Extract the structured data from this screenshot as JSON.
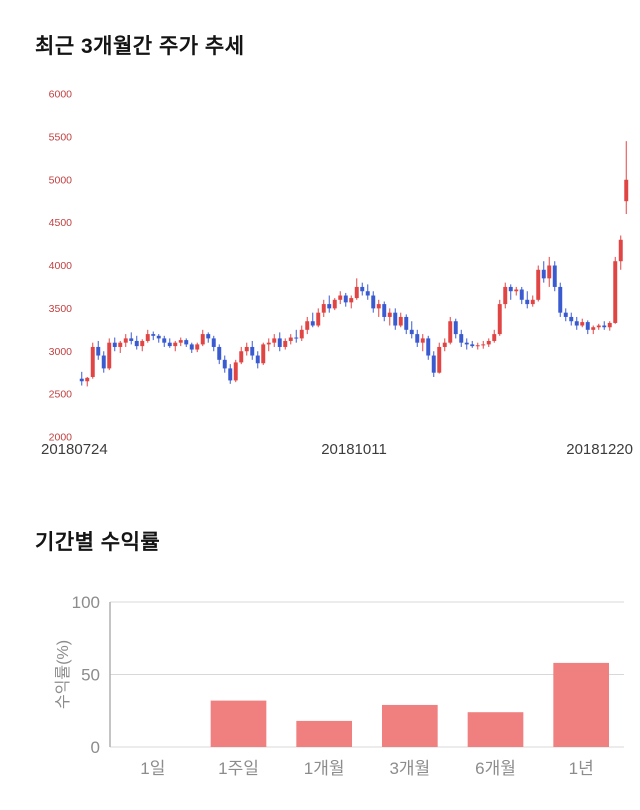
{
  "page": {
    "background": "#ffffff"
  },
  "chart_data": [
    {
      "type": "candlestick",
      "title": "최근 3개월간 주가 추세",
      "ylim": [
        2000,
        6000
      ],
      "y_ticks": [
        2000,
        2500,
        3000,
        3500,
        4000,
        4500,
        5000,
        5500,
        6000
      ],
      "x_labels": [
        "20180724",
        "20181011",
        "20181220"
      ],
      "up_color": "#e04443",
      "down_color": "#3a5bd0",
      "tick_color": "#c04040",
      "xlabel_color": "#3c3c3c",
      "candles": [
        [
          2680,
          2760,
          2600,
          2650
        ],
        [
          2650,
          2700,
          2590,
          2690
        ],
        [
          2700,
          3100,
          2680,
          3050
        ],
        [
          3050,
          3120,
          2900,
          2950
        ],
        [
          2950,
          3000,
          2750,
          2800
        ],
        [
          2800,
          3150,
          2780,
          3100
        ],
        [
          3100,
          3160,
          3000,
          3050
        ],
        [
          3050,
          3120,
          2980,
          3100
        ],
        [
          3100,
          3200,
          3050,
          3150
        ],
        [
          3150,
          3220,
          3080,
          3120
        ],
        [
          3120,
          3180,
          3020,
          3060
        ],
        [
          3060,
          3140,
          3000,
          3120
        ],
        [
          3120,
          3250,
          3100,
          3200
        ],
        [
          3200,
          3230,
          3130,
          3180
        ],
        [
          3180,
          3200,
          3100,
          3150
        ],
        [
          3150,
          3180,
          3050,
          3100
        ],
        [
          3100,
          3150,
          3040,
          3060
        ],
        [
          3060,
          3120,
          3000,
          3100
        ],
        [
          3100,
          3160,
          3060,
          3130
        ],
        [
          3130,
          3150,
          3050,
          3080
        ],
        [
          3080,
          3100,
          2980,
          3020
        ],
        [
          3020,
          3100,
          2990,
          3080
        ],
        [
          3080,
          3250,
          3060,
          3200
        ],
        [
          3200,
          3220,
          3100,
          3150
        ],
        [
          3150,
          3180,
          3000,
          3050
        ],
        [
          3050,
          3080,
          2850,
          2900
        ],
        [
          2900,
          2950,
          2750,
          2800
        ],
        [
          2800,
          2850,
          2620,
          2660
        ],
        [
          2660,
          2900,
          2640,
          2870
        ],
        [
          2870,
          3050,
          2850,
          3000
        ],
        [
          3000,
          3100,
          2950,
          3050
        ],
        [
          3050,
          3120,
          2900,
          2950
        ],
        [
          2950,
          3000,
          2800,
          2860
        ],
        [
          2860,
          3100,
          2840,
          3080
        ],
        [
          3080,
          3150,
          3000,
          3100
        ],
        [
          3100,
          3200,
          3050,
          3150
        ],
        [
          3150,
          3220,
          3000,
          3050
        ],
        [
          3050,
          3150,
          3020,
          3120
        ],
        [
          3120,
          3200,
          3080,
          3160
        ],
        [
          3160,
          3250,
          3100,
          3150
        ],
        [
          3150,
          3300,
          3120,
          3250
        ],
        [
          3250,
          3400,
          3200,
          3350
        ],
        [
          3350,
          3450,
          3280,
          3300
        ],
        [
          3300,
          3500,
          3280,
          3450
        ],
        [
          3450,
          3600,
          3400,
          3550
        ],
        [
          3550,
          3650,
          3450,
          3500
        ],
        [
          3500,
          3620,
          3480,
          3600
        ],
        [
          3600,
          3700,
          3550,
          3650
        ],
        [
          3650,
          3680,
          3520,
          3570
        ],
        [
          3570,
          3650,
          3500,
          3620
        ],
        [
          3620,
          3850,
          3600,
          3750
        ],
        [
          3750,
          3800,
          3650,
          3700
        ],
        [
          3700,
          3780,
          3600,
          3650
        ],
        [
          3650,
          3700,
          3450,
          3500
        ],
        [
          3500,
          3600,
          3400,
          3550
        ],
        [
          3550,
          3580,
          3350,
          3400
        ],
        [
          3400,
          3500,
          3300,
          3450
        ],
        [
          3450,
          3500,
          3250,
          3300
        ],
        [
          3300,
          3450,
          3280,
          3400
        ],
        [
          3400,
          3430,
          3200,
          3250
        ],
        [
          3250,
          3350,
          3150,
          3200
        ],
        [
          3200,
          3250,
          3050,
          3100
        ],
        [
          3100,
          3200,
          3000,
          3150
        ],
        [
          3150,
          3180,
          2900,
          2950
        ],
        [
          2950,
          3000,
          2700,
          2750
        ],
        [
          2750,
          3100,
          2740,
          3050
        ],
        [
          3050,
          3150,
          3000,
          3100
        ],
        [
          3100,
          3400,
          3080,
          3350
        ],
        [
          3350,
          3380,
          3150,
          3200
        ],
        [
          3200,
          3250,
          3050,
          3100
        ],
        [
          3100,
          3150,
          3020,
          3080
        ],
        [
          3080,
          3120,
          3040,
          3060
        ],
        [
          3060,
          3100,
          3020,
          3070
        ],
        [
          3070,
          3120,
          3030,
          3080
        ],
        [
          3080,
          3150,
          3050,
          3120
        ],
        [
          3120,
          3250,
          3100,
          3200
        ],
        [
          3200,
          3600,
          3180,
          3550
        ],
        [
          3550,
          3800,
          3500,
          3750
        ],
        [
          3750,
          3780,
          3600,
          3700
        ],
        [
          3700,
          3750,
          3650,
          3720
        ],
        [
          3720,
          3750,
          3550,
          3600
        ],
        [
          3600,
          3700,
          3500,
          3550
        ],
        [
          3550,
          3650,
          3520,
          3600
        ],
        [
          3600,
          4000,
          3580,
          3950
        ],
        [
          3950,
          4050,
          3800,
          3850
        ],
        [
          3850,
          4100,
          3750,
          4000
        ],
        [
          4000,
          4050,
          3700,
          3750
        ],
        [
          3750,
          3800,
          3400,
          3450
        ],
        [
          3450,
          3500,
          3350,
          3400
        ],
        [
          3400,
          3450,
          3300,
          3350
        ],
        [
          3350,
          3400,
          3250,
          3300
        ],
        [
          3300,
          3380,
          3280,
          3340
        ],
        [
          3340,
          3360,
          3200,
          3250
        ],
        [
          3250,
          3300,
          3200,
          3280
        ],
        [
          3280,
          3320,
          3250,
          3300
        ],
        [
          3300,
          3350,
          3250,
          3280
        ],
        [
          3280,
          3350,
          3240,
          3330
        ],
        [
          3330,
          4100,
          3320,
          4050
        ],
        [
          4050,
          4350,
          3950,
          4300
        ],
        [
          4750,
          5450,
          4600,
          5000
        ]
      ]
    },
    {
      "type": "bar",
      "title": "기간별 수익률",
      "categories": [
        "1일",
        "1주일",
        "1개월",
        "3개월",
        "6개월",
        "1년"
      ],
      "values": [
        0,
        32,
        18,
        29,
        24,
        58
      ],
      "ylabel": "수익률(%)",
      "ylim": [
        0,
        100
      ],
      "y_ticks": [
        0,
        50,
        100
      ],
      "grid": true,
      "legend": "none",
      "bar_color": "#f08080",
      "grid_color": "#d8d8d8",
      "axis_color": "#b0b0b0",
      "text_color": "#8c8c8c"
    }
  ]
}
